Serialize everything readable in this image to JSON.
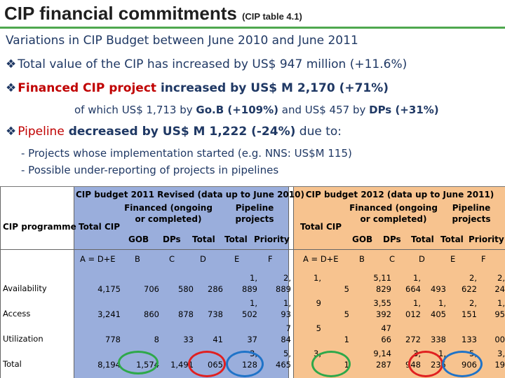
{
  "title": {
    "main": "CIP financial commitments",
    "sub": "(CIP table 4.1)"
  },
  "bullets": {
    "line1": "Variations in CIP Budget between June 2010  and June 2011",
    "line2_a": "Total value of the CIP",
    "line2_b": " has increased by US$ 947 million (+11.6%)",
    "line3_a": "Financed CIP project",
    "line3_b": " increased by US$ M 2,170 (+71%)",
    "line4_a": "of which US$ 1,713 by ",
    "line4_b": "Go.B (+109%)",
    "line4_c": " and US$ 457 by ",
    "line4_d": "DPs (+31%)",
    "line5_a": "Pipeline",
    "line5_b": " decreased by US$ M 1,222 (-24%)",
    "line5_c": " due to:",
    "line6": "-  Projects whose implementation started (e.g. NNS: US$M 115)",
    "line7": "-  Possible under-reporting of projects in pipelines",
    "diamond": "❖"
  },
  "table": {
    "col_programme": "CIP programme",
    "col_total_cip": "Total CIP",
    "group_2011": "CIP budget 2011 Revised (data up to June 2010)",
    "financed_2011": "Financed (ongoing or completed)",
    "pipeline_2011": "Pipeline projects",
    "group_2012": "CIP budget 2012 (data up to June 2011)",
    "financed_2012": "Financed (ongoing or completed)",
    "pipeline_2012": "Pipeline projects",
    "sub_gob": "GOB",
    "sub_dps": "DPs",
    "sub_total": "Total",
    "sub_priority": "Priority",
    "letters": {
      "a": "A = D+E",
      "b": "B",
      "c": "C",
      "d": "D",
      "e": "E",
      "f": "F"
    },
    "rows": [
      {
        "name": "Availability",
        "v2011": [
          "4,175",
          "706",
          "580",
          "286",
          "1,\n889",
          "2,\n889"
        ],
        "v2012": [
          "1,",
          "5",
          "5,11\n829",
          "1,\n664",
          "493",
          "2,\n622",
          "2,\n24"
        ]
      },
      {
        "name": "Access",
        "v2011": [
          "3,241",
          "860",
          "878",
          "738",
          "1,\n502",
          "1,\n93"
        ],
        "v2012": [
          "9",
          "5",
          "3,55\n392",
          "1,\n012",
          "1,\n405",
          "2,\n151",
          "1,\n95"
        ]
      },
      {
        "name": "Utilization",
        "v2011": [
          "778",
          "8",
          "33",
          "41",
          "37",
          "7\n84"
        ],
        "v2012": [
          "5",
          "1",
          "47\n66",
          "272",
          "338",
          "133",
          "00"
        ]
      },
      {
        "name": "Total",
        "v2011": [
          "8,194",
          "1,574",
          "1,491",
          "065",
          "3,\n128",
          "5,\n465"
        ],
        "v2012": [
          "3,",
          "1",
          "9,14\n287",
          "3,\n948",
          "1,\n235",
          "5,\n906",
          "3,\n19"
        ]
      }
    ]
  }
}
